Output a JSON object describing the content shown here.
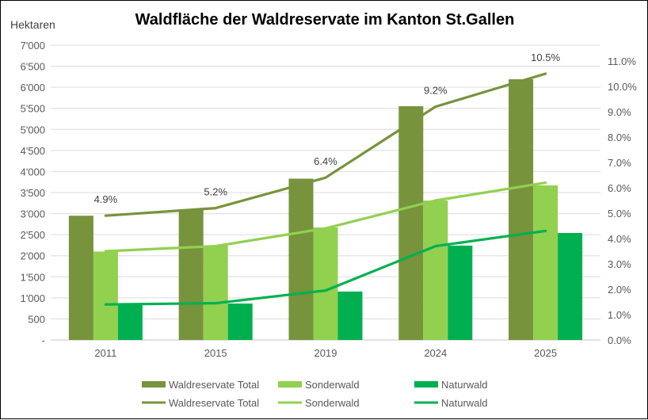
{
  "chart_data": {
    "type": "bar+line",
    "title": "Waldfläche der Waldreservate im Kanton St.Gallen",
    "ylabel": "Hektaren",
    "ylim": [
      0,
      7000
    ],
    "y2lim": [
      0,
      0.11
    ],
    "y_ticks": [
      "-",
      "500",
      "1'000",
      "1'500",
      "2'000",
      "2'500",
      "3'000",
      "3'500",
      "4'000",
      "4'500",
      "5'000",
      "5'500",
      "6'000",
      "6'500",
      "7'000"
    ],
    "y2_ticks": [
      "0.0%",
      "1.0%",
      "2.0%",
      "3.0%",
      "4.0%",
      "5.0%",
      "6.0%",
      "7.0%",
      "8.0%",
      "9.0%",
      "10.0%",
      "11.0%"
    ],
    "categories": [
      "2011",
      "2015",
      "2019",
      "2024",
      "2025"
    ],
    "grid": true,
    "legend_position": "bottom",
    "bar_series": [
      {
        "name": "Waldreservate Total",
        "color": "#77933c",
        "values": [
          2950,
          3100,
          3830,
          5550,
          6190
        ]
      },
      {
        "name": "Sonderwald",
        "color": "#92d050",
        "values": [
          2100,
          2240,
          2670,
          3310,
          3670
        ]
      },
      {
        "name": "Naturwald",
        "color": "#00b050",
        "values": [
          850,
          865,
          1150,
          2240,
          2540
        ]
      }
    ],
    "line_series": [
      {
        "name": "Waldreservate Total",
        "color": "#77933c",
        "values": [
          0.049,
          0.052,
          0.064,
          0.092,
          0.105
        ],
        "labels": [
          "4.9%",
          "5.2%",
          "6.4%",
          "9.2%",
          "10.5%"
        ]
      },
      {
        "name": "Sonderwald",
        "color": "#92d050",
        "values": [
          0.035,
          0.037,
          0.044,
          0.055,
          0.062
        ]
      },
      {
        "name": "Naturwald",
        "color": "#00b050",
        "values": [
          0.014,
          0.0145,
          0.0195,
          0.037,
          0.043
        ]
      }
    ]
  }
}
